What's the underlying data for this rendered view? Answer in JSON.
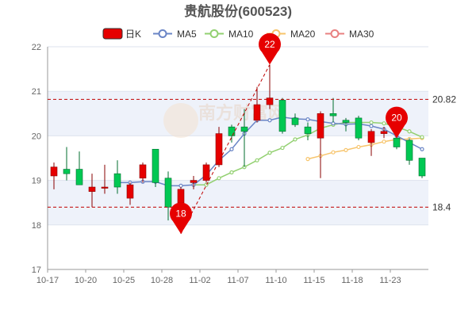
{
  "chart_data": {
    "type": "candlestick",
    "title": "贵航股份(600523)",
    "y_range": [
      17,
      22
    ],
    "y_ticks": [
      "17",
      "18",
      "19",
      "20",
      "21",
      "22"
    ],
    "x_tick_labels": [
      "10-17",
      "10-20",
      "10-25",
      "10-28",
      "11-02",
      "11-07",
      "11-10",
      "11-15",
      "11-18",
      "11-23"
    ],
    "x_tick_indices": [
      0,
      3,
      6,
      9,
      12,
      15,
      18,
      21,
      24,
      27
    ],
    "legend": [
      {
        "label": "日K",
        "color": "#e60000",
        "kind": "box"
      },
      {
        "label": "MA5",
        "color": "#6a85c6",
        "kind": "line"
      },
      {
        "label": "MA10",
        "color": "#92d070",
        "kind": "line"
      },
      {
        "label": "MA20",
        "color": "#f7c46b",
        "kind": "line"
      },
      {
        "label": "MA30",
        "color": "#e88080",
        "kind": "line"
      }
    ],
    "colors": {
      "up": "#e60000",
      "down": "#00c853",
      "ref_line": "#c00000",
      "pin": "#e60000"
    },
    "candles": [
      {
        "o": 19.1,
        "c": 19.3,
        "h": 19.4,
        "l": 18.8
      },
      {
        "o": 19.25,
        "c": 19.15,
        "h": 19.75,
        "l": 19.0
      },
      {
        "o": 19.25,
        "c": 18.9,
        "h": 19.65,
        "l": 18.9
      },
      {
        "o": 18.75,
        "c": 18.85,
        "h": 19.15,
        "l": 18.4
      },
      {
        "o": 18.85,
        "c": 18.85,
        "h": 19.35,
        "l": 18.7
      },
      {
        "o": 19.15,
        "c": 18.85,
        "h": 19.45,
        "l": 18.7
      },
      {
        "o": 18.6,
        "c": 18.9,
        "h": 18.95,
        "l": 18.45
      },
      {
        "o": 19.05,
        "c": 19.35,
        "h": 19.4,
        "l": 18.95
      },
      {
        "o": 19.7,
        "c": 18.95,
        "h": 19.7,
        "l": 18.85
      },
      {
        "o": 19.05,
        "c": 18.4,
        "h": 19.2,
        "l": 18.1
      },
      {
        "o": 18.5,
        "c": 18.8,
        "h": 18.85,
        "l": 17.8
      },
      {
        "o": 18.95,
        "c": 19.0,
        "h": 19.1,
        "l": 18.8
      },
      {
        "o": 19.0,
        "c": 19.35,
        "h": 19.4,
        "l": 18.95
      },
      {
        "o": 19.35,
        "c": 20.05,
        "h": 20.2,
        "l": 19.3
      },
      {
        "o": 20.2,
        "c": 20.0,
        "h": 20.25,
        "l": 19.85
      },
      {
        "o": 20.2,
        "c": 20.1,
        "h": 20.6,
        "l": 19.3
      },
      {
        "o": 20.35,
        "c": 20.7,
        "h": 21.1,
        "l": 20.3
      },
      {
        "o": 20.7,
        "c": 20.85,
        "h": 21.6,
        "l": 20.6
      },
      {
        "o": 20.8,
        "c": 20.1,
        "h": 20.85,
        "l": 20.05
      },
      {
        "o": 20.4,
        "c": 20.25,
        "h": 20.5,
        "l": 20.2
      },
      {
        "o": 20.2,
        "c": 20.05,
        "h": 20.3,
        "l": 19.9
      },
      {
        "o": 19.95,
        "c": 20.5,
        "h": 20.55,
        "l": 19.05
      },
      {
        "o": 20.5,
        "c": 20.45,
        "h": 20.85,
        "l": 20.3
      },
      {
        "o": 20.35,
        "c": 20.3,
        "h": 20.4,
        "l": 20.1
      },
      {
        "o": 20.4,
        "c": 19.95,
        "h": 20.45,
        "l": 19.9
      },
      {
        "o": 19.85,
        "c": 20.1,
        "h": 20.15,
        "l": 19.55
      },
      {
        "o": 20.05,
        "c": 20.1,
        "h": 20.2,
        "l": 19.95
      },
      {
        "o": 19.95,
        "c": 19.75,
        "h": 20.05,
        "l": 19.7
      },
      {
        "o": 19.9,
        "c": 19.45,
        "h": 19.95,
        "l": 19.35
      },
      {
        "o": 19.5,
        "c": 19.1,
        "h": 19.5,
        "l": 19.05
      }
    ],
    "ma5": [
      null,
      null,
      null,
      null,
      null,
      18.95,
      18.95,
      18.97,
      18.97,
      18.88,
      18.88,
      18.9,
      19.12,
      19.45,
      19.7,
      20.05,
      20.35,
      20.35,
      20.42,
      20.38,
      20.37,
      20.32,
      20.28,
      20.26,
      20.27,
      20.22,
      20.15,
      20.0,
      19.85,
      19.7
    ],
    "ma10": [
      null,
      null,
      null,
      null,
      null,
      null,
      null,
      null,
      null,
      null,
      null,
      18.9,
      18.9,
      19.05,
      19.18,
      19.3,
      19.45,
      19.62,
      19.73,
      19.92,
      20.02,
      20.17,
      20.25,
      20.3,
      20.3,
      20.3,
      20.28,
      20.2,
      20.1,
      19.97
    ],
    "ma20": [
      null,
      null,
      null,
      null,
      null,
      null,
      null,
      null,
      null,
      null,
      null,
      null,
      null,
      null,
      null,
      null,
      null,
      null,
      null,
      null,
      19.48,
      19.55,
      19.63,
      19.68,
      19.75,
      19.8,
      19.87,
      19.92,
      19.93,
      19.95
    ],
    "ma30": [],
    "ref_lines": [
      {
        "value": 20.82,
        "label": "20.82"
      },
      {
        "value": 18.4,
        "label": "18.4"
      }
    ],
    "pins": [
      {
        "label": "22",
        "index": 17,
        "value": 21.6
      },
      {
        "label": "18",
        "index": 10,
        "value": 17.8
      },
      {
        "label": "20",
        "index": 27,
        "value": 19.95
      }
    ],
    "trend_line": {
      "from_index": 10,
      "from_value": 17.8,
      "to_index": 17,
      "to_value": 21.6
    },
    "watermark": "南方财富网"
  }
}
